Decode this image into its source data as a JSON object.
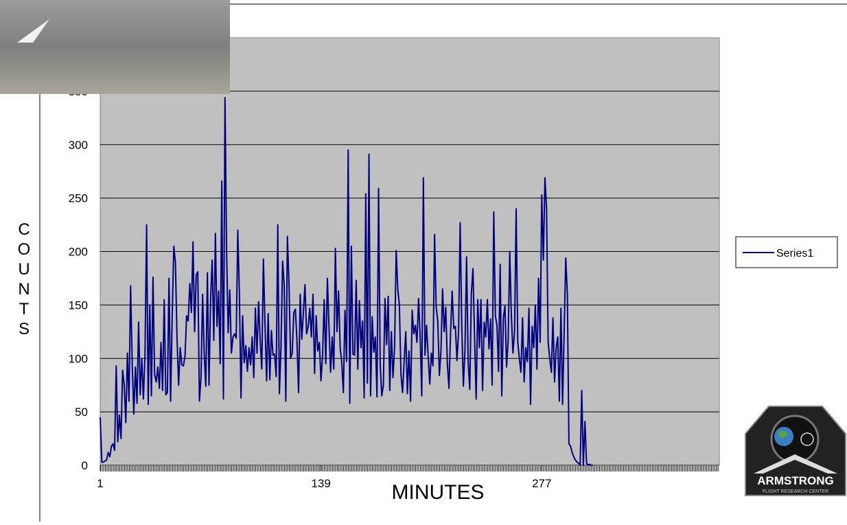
{
  "chart_data": {
    "type": "line",
    "xlabel": "MINUTES",
    "ylabel": "COUNTS",
    "x": [
      1,
      2,
      3,
      4,
      5,
      6,
      7,
      8,
      9,
      10,
      11,
      12,
      13,
      14,
      15,
      16,
      17,
      18,
      19,
      20,
      21,
      22,
      23,
      24,
      25,
      26,
      27,
      28,
      29,
      30,
      31,
      32,
      33,
      34,
      35,
      36,
      37,
      38,
      39,
      40,
      41,
      42,
      43,
      44,
      45,
      46,
      47,
      48,
      49,
      50,
      51,
      52,
      53,
      54,
      55,
      56,
      57,
      58,
      59,
      60,
      61,
      62,
      63,
      64,
      65,
      66,
      67,
      68,
      69,
      70,
      71,
      72,
      73,
      74,
      75,
      76,
      77,
      78,
      79,
      80,
      81,
      82,
      83,
      84,
      85,
      86,
      87,
      88,
      89,
      90,
      91,
      92,
      93,
      94,
      95,
      96,
      97,
      98,
      99,
      100,
      101,
      102,
      103,
      104,
      105,
      106,
      107,
      108,
      109,
      110,
      111,
      112,
      113,
      114,
      115,
      116,
      117,
      118,
      119,
      120,
      121,
      122,
      123,
      124,
      125,
      126,
      127,
      128,
      129,
      130,
      131,
      132,
      133,
      134,
      135,
      136,
      137,
      138,
      139,
      140,
      141,
      142,
      143,
      144,
      145,
      146,
      147,
      148,
      149,
      150,
      151,
      152,
      153,
      154,
      155,
      156,
      157,
      158,
      159,
      160,
      161,
      162,
      163,
      164,
      165,
      166,
      167,
      168,
      169,
      170,
      171,
      172,
      173,
      174,
      175,
      176,
      177,
      178,
      179,
      180,
      181,
      182,
      183,
      184,
      185,
      186,
      187,
      188,
      189,
      190,
      191,
      192,
      193,
      194,
      195,
      196,
      197,
      198,
      199,
      200,
      201,
      202,
      203,
      204,
      205,
      206,
      207,
      208,
      209,
      210,
      211,
      212,
      213,
      214,
      215,
      216,
      217,
      218,
      219,
      220,
      221,
      222,
      223,
      224,
      225,
      226,
      227,
      228,
      229,
      230,
      231,
      232,
      233,
      234,
      235,
      236,
      237,
      238,
      239,
      240,
      241,
      242,
      243,
      244,
      245,
      246,
      247,
      248,
      249,
      250,
      251,
      252,
      253,
      254,
      255,
      256,
      257,
      258,
      259,
      260,
      261,
      262,
      263,
      264,
      265,
      266,
      267,
      268,
      269,
      270,
      271,
      272,
      273,
      274,
      275,
      276,
      277,
      278,
      279,
      280,
      281,
      282,
      283,
      284,
      285,
      286,
      287,
      288,
      289,
      290,
      291,
      292,
      293,
      294,
      295,
      296,
      297,
      298,
      299,
      300,
      301,
      302,
      303,
      304,
      305,
      306,
      307,
      308,
      309
    ],
    "series": [
      {
        "name": "Series1",
        "color": "#000080",
        "values": [
          45,
          3,
          3,
          4,
          5,
          12,
          8,
          18,
          20,
          14,
          93,
          22,
          47,
          25,
          89,
          75,
          40,
          105,
          60,
          168,
          95,
          48,
          92,
          58,
          134,
          66,
          100,
          62,
          104,
          225,
          57,
          150,
          65,
          176,
          85,
          78,
          92,
          72,
          115,
          70,
          155,
          66,
          68,
          175,
          60,
          140,
          205,
          190,
          120,
          75,
          110,
          94,
          93,
          102,
          140,
          135,
          170,
          143,
          209,
          125,
          178,
          181,
          60,
          82,
          160,
          105,
          74,
          180,
          75,
          155,
          192,
          117,
          217,
          130,
          163,
          95,
          266,
          62,
          344,
          200,
          124,
          164,
          105,
          120,
          123,
          119,
          220,
          160,
          63,
          140,
          96,
          112,
          88,
          110,
          94,
          120,
          82,
          147,
          105,
          153,
          117,
          90,
          193,
          133,
          79,
          142,
          80,
          126,
          103,
          104,
          83,
          225,
          67,
          110,
          191,
          169,
          60,
          214,
          170,
          100,
          105,
          143,
          146,
          116,
          68,
          160,
          118,
          143,
          169,
          123,
          130,
          147,
          120,
          160,
          86,
          140,
          107,
          115,
          79,
          103,
          155,
          95,
          175,
          130,
          87,
          120,
          90,
          203,
          125,
          163,
          110,
          96,
          68,
          145,
          97,
          295,
          58,
          205,
          104,
          103,
          173,
          90,
          154,
          110,
          135,
          63,
          254,
          77,
          291,
          65,
          139,
          106,
          120,
          64,
          259,
          95,
          65,
          75,
          156,
          113,
          158,
          70,
          125,
          82,
          110,
          201,
          165,
          150,
          85,
          68,
          98,
          125,
          67,
          107,
          60,
          145,
          123,
          131,
          115,
          156,
          120,
          65,
          269,
          103,
          131,
          102,
          76,
          105,
          93,
          216,
          148,
          135,
          84,
          107,
          165,
          125,
          148,
          95,
          72,
          124,
          163,
          128,
          130,
          98,
          125,
          227,
          130,
          74,
          108,
          195,
          97,
          71,
          161,
          184,
          120,
          62,
          155,
          110,
          155,
          70,
          134,
          120,
          155,
          109,
          137,
          75,
          237,
          140,
          131,
          88,
          188,
          65,
          138,
          149,
          92,
          117,
          200,
          140,
          105,
          125,
          240,
          115,
          100,
          87,
          138,
          78,
          110,
          97,
          147,
          57,
          130,
          110,
          150,
          90,
          175,
          115,
          253,
          192,
          269,
          240,
          115,
          100,
          87,
          138,
          78,
          110,
          120,
          60,
          147,
          57,
          125,
          194,
          160,
          20,
          18,
          12,
          8,
          5,
          3,
          2,
          0,
          70,
          0,
          41,
          2,
          0,
          1,
          0,
          0
        ]
      }
    ],
    "xlim": [
      1,
      388
    ],
    "xticks": [
      1,
      139,
      277
    ],
    "ylim": [
      0,
      400
    ],
    "yticks": [
      0,
      50,
      100,
      150,
      200,
      250,
      300,
      350
    ],
    "grid": true,
    "legend": "right"
  },
  "logo": {
    "title": "ARMSTRONG",
    "subtitle": "FLIGHT RESEARCH CENTER"
  }
}
